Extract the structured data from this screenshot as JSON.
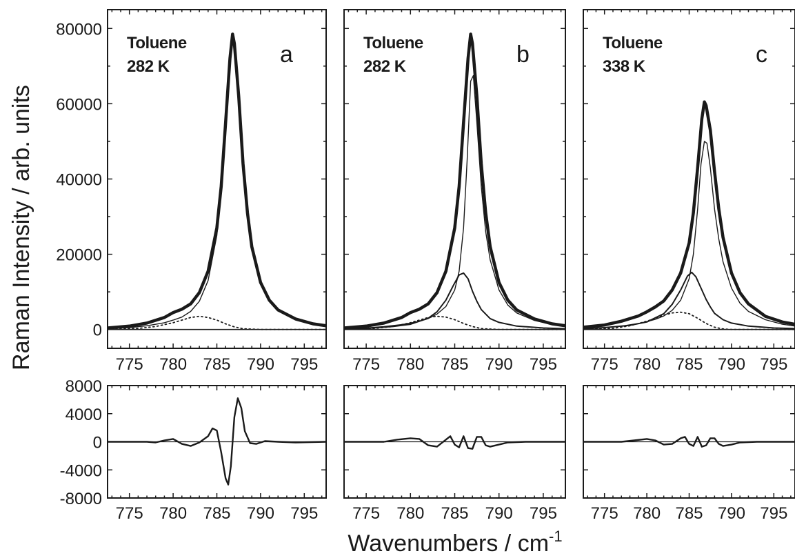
{
  "figure": {
    "ylabel": "Raman Intensity / arb. units",
    "xlabel_main": "Wavenumbers / cm",
    "xlabel_sup": "-1"
  },
  "chart_data": {
    "type": "line",
    "xlim": [
      772.5,
      797.5
    ],
    "x_ticks": [
      "775",
      "780",
      "785",
      "790",
      "795"
    ],
    "main_ylim": [
      -5000,
      85000
    ],
    "main_y_ticks": [
      "0",
      "20000",
      "40000",
      "60000",
      "80000"
    ],
    "resid_ylim": [
      -8000,
      8000
    ],
    "resid_y_ticks": [
      "-8000",
      "-4000",
      "0",
      "4000",
      "8000"
    ],
    "grid": false,
    "panels": [
      {
        "letter": "a",
        "sample": "Toluene",
        "temperature": "282 K",
        "series": [
          {
            "style": "bold",
            "x": [
              772.5,
              775,
              777,
              779,
              780,
              781,
              782,
              783,
              784,
              785,
              785.5,
              786,
              786.5,
              786.8,
              787,
              787.5,
              788,
              788.5,
              789,
              790,
              791,
              792,
              794,
              796,
              797.5
            ],
            "y": [
              400,
              900,
              1700,
              3200,
              4500,
              5400,
              6800,
              9800,
              15500,
              27000,
              38000,
              55000,
              72000,
              78500,
              76000,
              62000,
              44000,
              31000,
              22000,
              12500,
              7800,
              5200,
              2800,
              1500,
              1000
            ]
          },
          {
            "style": "thin",
            "x": [
              772.5,
              775,
              777,
              779,
              780,
              781,
              782,
              783,
              784,
              785,
              785.5,
              786,
              786.5,
              786.8,
              787,
              787.5,
              788,
              788.5,
              789,
              790,
              791,
              792,
              794,
              796,
              797.5
            ],
            "y": [
              200,
              500,
              1000,
              1800,
              2500,
              3300,
              4800,
              7500,
              13000,
              25000,
              36500,
              54000,
              71500,
              78000,
              75800,
              62000,
              44000,
              31000,
              22000,
              12500,
              7800,
              5200,
              2800,
              1500,
              1000
            ]
          },
          {
            "style": "dotted",
            "x": [
              772.5,
              776,
              778,
              780,
              781,
              782,
              783,
              784,
              785,
              786,
              787,
              788,
              790,
              792,
              797.5
            ],
            "y": [
              0,
              300,
              800,
              1800,
              2500,
              3200,
              3500,
              3200,
              2500,
              1500,
              700,
              200,
              0,
              0,
              0
            ]
          }
        ],
        "residual": {
          "x": [
            772.5,
            777,
            778,
            779,
            780,
            781,
            782,
            783,
            784,
            784.5,
            785,
            785.5,
            786,
            786.3,
            786.6,
            787,
            787.4,
            787.8,
            788.2,
            788.8,
            789.5,
            790.5,
            792,
            794,
            797.5
          ],
          "y": [
            0,
            0,
            -100,
            200,
            400,
            -300,
            -600,
            -100,
            800,
            1900,
            1600,
            -1500,
            -5200,
            -6100,
            -3500,
            3500,
            6200,
            4800,
            1500,
            -200,
            -300,
            100,
            0,
            -100,
            0
          ]
        }
      },
      {
        "letter": "b",
        "sample": "Toluene",
        "temperature": "282 K",
        "series": [
          {
            "style": "bold",
            "x": [
              772.5,
              775,
              777,
              779,
              780,
              781,
              782,
              783,
              784,
              785,
              785.5,
              786,
              786.5,
              786.8,
              787,
              787.5,
              788,
              788.5,
              789,
              790,
              791,
              792,
              794,
              796,
              797.5
            ],
            "y": [
              400,
              900,
              1700,
              3200,
              4500,
              5400,
              6800,
              9800,
              15500,
              27000,
              38000,
              55000,
              72000,
              78500,
              76000,
              62000,
              44000,
              31000,
              22000,
              12500,
              7800,
              5200,
              2800,
              1500,
              1000
            ]
          },
          {
            "style": "thin",
            "x": [
              772.5,
              775,
              777,
              779,
              780,
              781,
              782,
              783,
              784,
              785,
              785.5,
              786,
              786.4,
              786.8,
              787.1,
              787.5,
              788,
              788.5,
              789,
              790,
              791,
              792,
              794,
              796,
              797.5
            ],
            "y": [
              200,
              400,
              800,
              1300,
              1700,
              2200,
              2900,
              4100,
              6100,
              10500,
              15500,
              27000,
              45000,
              66000,
              67500,
              55000,
              38000,
              26000,
              18500,
              10500,
              6500,
              4400,
              2400,
              1300,
              900
            ]
          },
          {
            "style": "medium",
            "x": [
              772.5,
              775,
              778,
              780,
              782,
              783,
              784,
              784.8,
              785.5,
              786,
              786.5,
              787,
              787.5,
              788,
              789,
              790,
              792,
              795,
              797.5
            ],
            "y": [
              100,
              300,
              800,
              1400,
              3000,
              4700,
              7800,
              11500,
              14500,
              15000,
              13500,
              10200,
              7500,
              5300,
              2900,
              1900,
              900,
              400,
              200
            ]
          },
          {
            "style": "dotted",
            "x": [
              772.5,
              776,
              778,
              780,
              781,
              782,
              783,
              784,
              785,
              786,
              787,
              788,
              790,
              792,
              797.5
            ],
            "y": [
              0,
              300,
              800,
              1800,
              2500,
              3200,
              3500,
              3300,
              2600,
              1600,
              800,
              250,
              0,
              0,
              0
            ]
          }
        ],
        "residual": {
          "x": [
            772.5,
            777,
            778.5,
            780,
            781,
            782,
            783,
            784,
            784.5,
            785,
            785.5,
            786,
            786.5,
            787,
            787.5,
            788,
            788.5,
            789,
            790,
            791,
            793,
            797.5
          ],
          "y": [
            0,
            0,
            300,
            500,
            400,
            -500,
            -700,
            300,
            800,
            -400,
            -800,
            800,
            -900,
            -1000,
            700,
            700,
            -500,
            -700,
            -400,
            -100,
            0,
            0
          ]
        }
      },
      {
        "letter": "c",
        "sample": "Toluene",
        "temperature": "338 K",
        "series": [
          {
            "style": "bold",
            "x": [
              772.5,
              775,
              777,
              779,
              780,
              781,
              782,
              783,
              784,
              785,
              785.5,
              786,
              786.5,
              786.8,
              787,
              787.5,
              788,
              788.5,
              789,
              790,
              791,
              792,
              794,
              796,
              797.5
            ],
            "y": [
              600,
              1200,
              2200,
              3600,
              4700,
              6000,
              7600,
              10500,
              15000,
              23000,
              31000,
              43000,
              56000,
              60500,
              59500,
              53000,
              42000,
              32000,
              24500,
              15000,
              9800,
              6800,
              3500,
              2000,
              1400
            ]
          },
          {
            "style": "thin",
            "x": [
              772.5,
              775,
              777,
              779,
              780,
              781,
              782,
              783,
              784,
              785,
              785.5,
              786,
              786.4,
              786.8,
              787.1,
              787.5,
              788,
              788.5,
              789,
              790,
              791,
              792,
              794,
              796,
              797.5
            ],
            "y": [
              200,
              500,
              900,
              1600,
              2100,
              2700,
              3600,
              5100,
              7800,
              13500,
              20000,
              32000,
              44000,
              50000,
              49500,
              43000,
              32000,
              24000,
              18000,
              11000,
              7000,
              4800,
              2600,
              1400,
              900
            ]
          },
          {
            "style": "medium",
            "x": [
              772.5,
              775,
              778,
              780,
              782,
              783,
              784,
              784.8,
              785.3,
              785.8,
              786.5,
              787,
              787.5,
              788,
              789,
              790,
              792,
              795,
              797.5
            ],
            "y": [
              200,
              500,
              1100,
              2000,
              4200,
              6700,
              10500,
              14200,
              15200,
              14000,
              10500,
              8000,
              6000,
              4300,
              2600,
              1700,
              900,
              400,
              250
            ]
          },
          {
            "style": "dotted",
            "x": [
              772.5,
              776,
              778,
              780,
              781,
              782,
              783,
              784,
              785,
              786,
              787,
              788,
              789,
              790,
              792,
              797.5
            ],
            "y": [
              0,
              300,
              1000,
              2200,
              3000,
              3800,
              4400,
              4600,
              4200,
              3000,
              1600,
              600,
              150,
              0,
              0,
              0
            ]
          }
        ],
        "residual": {
          "x": [
            772.5,
            777,
            778.5,
            780,
            781,
            782,
            783,
            784,
            784.5,
            785,
            785.5,
            786,
            786.5,
            787,
            787.5,
            788,
            788.5,
            789,
            790,
            791,
            793,
            797.5
          ],
          "y": [
            0,
            0,
            200,
            400,
            200,
            -400,
            -300,
            500,
            700,
            -300,
            -600,
            700,
            -700,
            -500,
            500,
            500,
            -300,
            -600,
            -400,
            -100,
            0,
            0
          ]
        }
      }
    ]
  }
}
